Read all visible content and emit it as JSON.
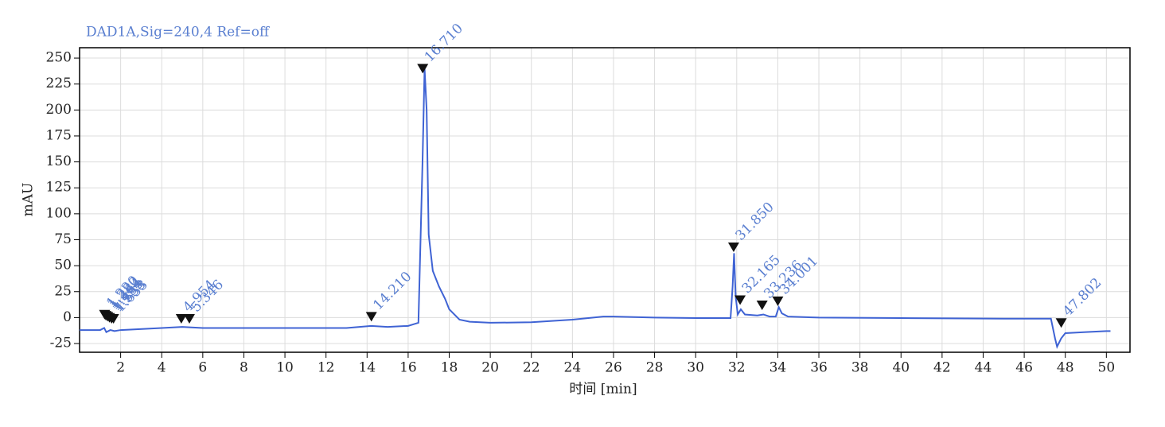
{
  "chart_data": {
    "type": "line",
    "title": "DAD1A,Sig=240,4  Ref=off",
    "xlabel": "时间 [min]",
    "ylabel": "mAU",
    "xlim": [
      0,
      51.15
    ],
    "ylim": [
      -33.4,
      260
    ],
    "xticks": [
      2,
      4,
      6,
      8,
      10,
      12,
      14,
      16,
      18,
      20,
      22,
      24,
      26,
      28,
      30,
      32,
      34,
      36,
      38,
      40,
      42,
      44,
      46,
      48,
      50
    ],
    "yticks": [
      -25,
      0,
      25,
      50,
      75,
      100,
      125,
      150,
      175,
      200,
      225,
      250
    ],
    "grid": true,
    "series": [
      {
        "color": "#3f63d4",
        "x": [
          0,
          1.0,
          1.2,
          1.3,
          1.5,
          1.7,
          2,
          4,
          5,
          6,
          8,
          10,
          12,
          13,
          14.2,
          15,
          16,
          16.5,
          16.7,
          16.8,
          16.9,
          17.0,
          17.2,
          17.5,
          17.8,
          18.0,
          18.5,
          19,
          20,
          22,
          24,
          25.5,
          26,
          28,
          30,
          31.7,
          31.8,
          31.87,
          31.95,
          32.05,
          32.2,
          32.4,
          33,
          33.3,
          33.6,
          33.9,
          34.05,
          34.2,
          34.5,
          36,
          40,
          45,
          47.3,
          47.5,
          47.6,
          47.8,
          48,
          49,
          50,
          50.2
        ],
        "values": [
          -12,
          -12,
          -10,
          -14,
          -12,
          -13,
          -12,
          -10,
          -9,
          -10,
          -10,
          -10,
          -10,
          -10,
          -8,
          -9,
          -8,
          -5,
          150,
          240,
          200,
          80,
          45,
          30,
          18,
          8,
          -2,
          -4,
          -5,
          -4.5,
          -2,
          1,
          1,
          0,
          -0.5,
          -0.5,
          30,
          62,
          20,
          3,
          8,
          3,
          2,
          3,
          1,
          1,
          10,
          4,
          1,
          0,
          -0.5,
          -1,
          -1,
          -20,
          -28,
          -20,
          -15,
          -14,
          -13,
          -13
        ]
      }
    ],
    "peaks": [
      {
        "x": 1.22,
        "y": 2,
        "label": "1.220"
      },
      {
        "x": 1.282,
        "y": 1,
        "label": "1.282"
      },
      {
        "x": 1.364,
        "y": 0,
        "label": "1.364"
      },
      {
        "x": 1.454,
        "y": -1,
        "label": "1.454"
      },
      {
        "x": 1.558,
        "y": -2,
        "label": "1.558"
      },
      {
        "x": 1.653,
        "y": -2,
        "label": "1.653"
      },
      {
        "x": 4.954,
        "y": -2,
        "label": "4.954"
      },
      {
        "x": 5.346,
        "y": -2,
        "label": "5.346"
      },
      {
        "x": 14.21,
        "y": 0,
        "label": "14.210"
      },
      {
        "x": 16.71,
        "y": 239,
        "label": "16.710"
      },
      {
        "x": 31.85,
        "y": 67,
        "label": "31.850"
      },
      {
        "x": 32.165,
        "y": 16,
        "label": "32.165"
      },
      {
        "x": 33.236,
        "y": 11,
        "label": "33.236"
      },
      {
        "x": 34.001,
        "y": 15,
        "label": "34.001"
      },
      {
        "x": 47.802,
        "y": -6,
        "label": "47.802"
      }
    ]
  }
}
